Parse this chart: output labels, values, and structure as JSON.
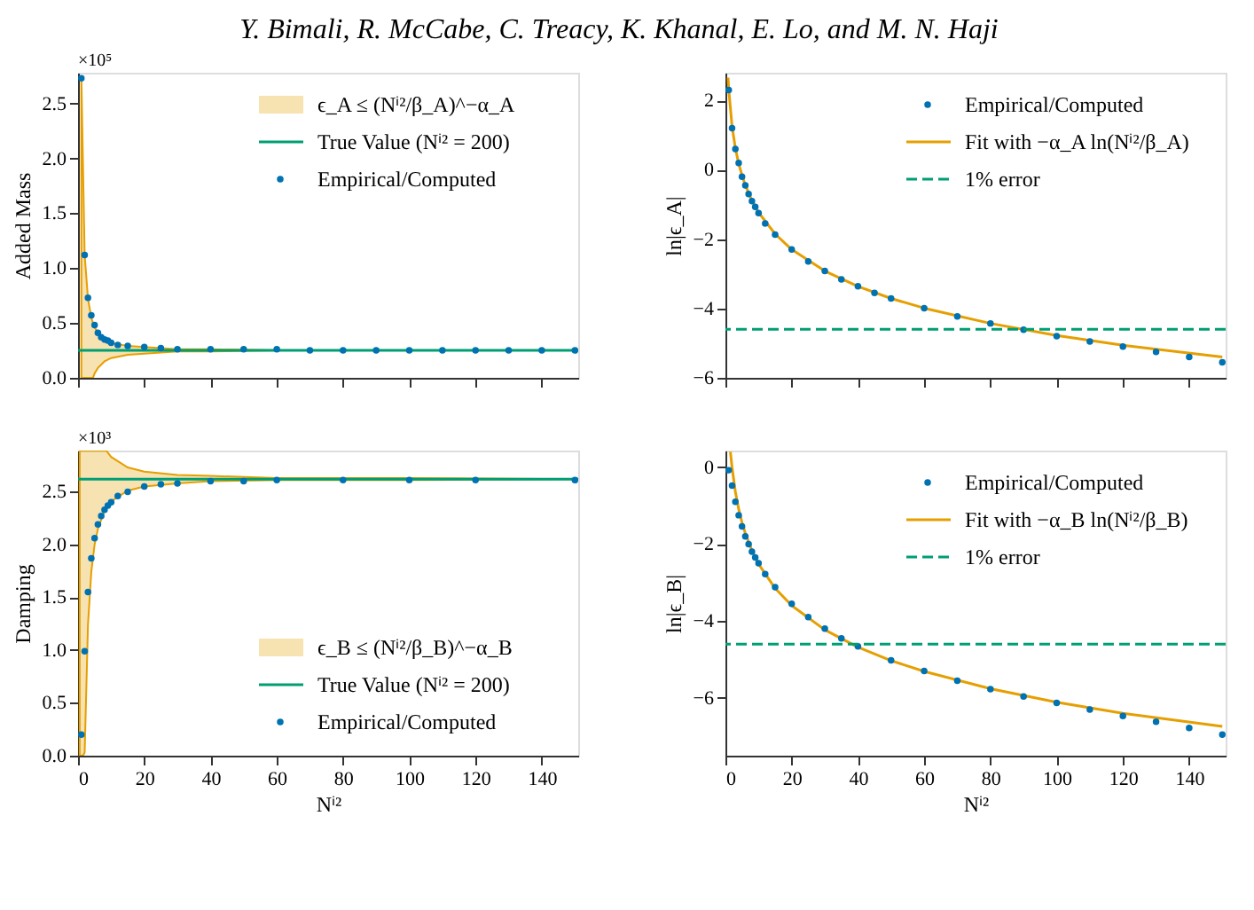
{
  "chart_data": [
    {
      "type": "scatter",
      "title": "Y. Bimali, R. McCabe, C. Treacy, K. Khanal, E. Lo, and M. N. Haji",
      "ylabel": "Added Mass",
      "annotations": [
        "×10⁵"
      ],
      "xlim": [
        0,
        151
      ],
      "xticks": [
        0,
        20,
        40,
        60,
        80,
        100,
        120,
        140
      ],
      "ylim": [
        0,
        2.78
      ],
      "yticks": [
        {
          "value": 0,
          "label": "0.0"
        },
        0.5,
        {
          "value": 1,
          "label": "1.0"
        },
        1.5,
        {
          "value": 2,
          "label": "2.0"
        },
        2.5
      ],
      "tick_labels": "y",
      "grid": false,
      "legend": "top right",
      "marker": "circle",
      "series": [
        {
          "name": "ϵ_A ≤ (Nⁱ²/β_A)^−α_A",
          "type": "area",
          "marker": "none",
          "color": "#e69f00",
          "x": [
            1,
            2,
            3,
            4,
            4.5,
            5,
            6,
            8,
            10,
            15,
            20,
            30,
            40,
            60,
            100,
            150
          ],
          "values": [
            null,
            null,
            null,
            null,
            null,
            null,
            null,
            null,
            null,
            null,
            null,
            null,
            null,
            null,
            null,
            null
          ],
          "upper": [
            2.75,
            1.12,
            0.72,
            0.55,
            0.5,
            0.46,
            0.41,
            0.35,
            0.32,
            0.29,
            0.28,
            0.26,
            0.26,
            0.25,
            0.25,
            0.25
          ],
          "lower": [
            0,
            0,
            0,
            0,
            0,
            0.04,
            0.09,
            0.15,
            0.18,
            0.21,
            0.22,
            0.24,
            0.24,
            0.25,
            0.25,
            0.25
          ]
        },
        {
          "name": "True Value (Nⁱ² = 200)",
          "type": "line",
          "marker": "none",
          "line_style": "solid",
          "color": "#009e73",
          "x": [
            0,
            151
          ],
          "values": [
            0.25,
            0.25
          ]
        },
        {
          "name": "Empirical/Computed",
          "color": "#0072b2",
          "x": [
            1,
            2,
            3,
            4,
            5,
            6,
            7,
            8,
            9,
            10,
            12,
            15,
            20,
            25,
            30,
            40,
            50,
            60,
            70,
            80,
            90,
            100,
            110,
            120,
            130,
            140,
            150
          ],
          "values": [
            2.73,
            1.12,
            0.73,
            0.57,
            0.48,
            0.41,
            0.37,
            0.35,
            0.34,
            0.32,
            0.3,
            0.29,
            0.28,
            0.27,
            0.26,
            0.26,
            0.26,
            0.26,
            0.25,
            0.25,
            0.25,
            0.25,
            0.25,
            0.25,
            0.25,
            0.25,
            0.25
          ]
        }
      ]
    },
    {
      "type": "scatter",
      "ylabel": "ln|ϵ_A|",
      "xlim": [
        0,
        151
      ],
      "xticks": [
        0,
        20,
        40,
        60,
        80,
        100,
        120,
        140
      ],
      "ylim": [
        -6,
        2.8
      ],
      "yticks": [
        -6,
        -4,
        -2,
        0,
        2
      ],
      "tick_labels": "y",
      "grid": false,
      "legend": "top right",
      "marker": "circle",
      "series": [
        {
          "name": "Empirical/Computed",
          "color": "#0072b2",
          "x": [
            1,
            2,
            3,
            4,
            5,
            6,
            7,
            8,
            9,
            10,
            12,
            15,
            20,
            25,
            30,
            35,
            40,
            45,
            50,
            60,
            70,
            80,
            90,
            100,
            110,
            120,
            130,
            140,
            150
          ],
          "values": [
            2.3,
            1.2,
            0.6,
            0.2,
            -0.2,
            -0.45,
            -0.7,
            -0.9,
            -1.07,
            -1.25,
            -1.55,
            -1.87,
            -2.3,
            -2.64,
            -2.92,
            -3.16,
            -3.36,
            -3.55,
            -3.71,
            -3.99,
            -4.23,
            -4.43,
            -4.61,
            -4.8,
            -4.95,
            -5.1,
            -5.25,
            -5.4,
            -5.55
          ]
        },
        {
          "name": "Fit with −α_A ln(Nⁱ²/β_A)",
          "type": "line",
          "marker": "none",
          "line_style": "solid",
          "color": "#e69f00",
          "x": [
            0.8,
            1,
            2,
            3,
            4,
            5,
            6,
            8,
            10,
            15,
            20,
            30,
            40,
            50,
            60,
            80,
            100,
            120,
            150
          ],
          "values": [
            2.66,
            2.32,
            1.25,
            0.62,
            0.18,
            -0.16,
            -0.44,
            -0.89,
            -1.23,
            -1.85,
            -2.3,
            -2.92,
            -3.36,
            -3.71,
            -3.99,
            -4.43,
            -4.78,
            -5.06,
            -5.4
          ]
        }
      ],
      "ref_lines": [
        {
          "axis": "y",
          "value": -4.6,
          "label": "1% error",
          "color": "#009e73",
          "line_style": "dashed"
        }
      ]
    },
    {
      "type": "scatter",
      "ylabel": "Damping",
      "xlabel": "Nⁱ²",
      "annotations": [
        "×10³"
      ],
      "xlim": [
        0,
        151
      ],
      "xticks": [
        0,
        20,
        40,
        60,
        80,
        100,
        120,
        140
      ],
      "ylim": [
        0,
        2.89
      ],
      "yticks": [
        {
          "value": 0,
          "label": "0.0"
        },
        0.5,
        {
          "value": 1,
          "label": "1.0"
        },
        1.5,
        {
          "value": 2,
          "label": "2.0"
        },
        2.5
      ],
      "grid": false,
      "legend": "bottom right",
      "marker": "circle",
      "series": [
        {
          "name": "ϵ_B ≤ (Nⁱ²/β_B)^−α_B",
          "type": "area",
          "marker": "none",
          "color": "#e69f00",
          "x": [
            0.5,
            1,
            1.5,
            2,
            3,
            4,
            5,
            6,
            8,
            8.5,
            10,
            15,
            20,
            30,
            40,
            60,
            100,
            150
          ],
          "values": [
            null,
            null,
            null,
            null,
            null,
            null,
            null,
            null,
            null,
            null,
            null,
            null,
            null,
            null,
            null,
            null,
            null,
            null
          ],
          "upper": [
            2.89,
            2.89,
            2.89,
            2.89,
            2.89,
            2.89,
            2.89,
            2.89,
            2.89,
            2.89,
            2.83,
            2.73,
            2.69,
            2.66,
            2.65,
            2.63,
            2.63,
            2.62
          ],
          "lower": [
            0,
            0,
            0,
            0.03,
            1.24,
            1.74,
            2.0,
            2.15,
            2.32,
            2.35,
            2.41,
            2.51,
            2.55,
            2.58,
            2.6,
            2.61,
            2.61,
            2.62
          ]
        },
        {
          "name": "True Value (Nⁱ² = 200)",
          "type": "line",
          "marker": "none",
          "line_style": "solid",
          "color": "#009e73",
          "x": [
            0,
            151
          ],
          "values": [
            2.62,
            2.62
          ]
        },
        {
          "name": "Empirical/Computed",
          "color": "#0072b2",
          "x": [
            1,
            2,
            3,
            4,
            5,
            6,
            7,
            8,
            9,
            10,
            12,
            15,
            20,
            25,
            30,
            40,
            50,
            60,
            80,
            100,
            120,
            150
          ],
          "values": [
            0.2,
            0.99,
            1.55,
            1.87,
            2.06,
            2.19,
            2.27,
            2.33,
            2.37,
            2.4,
            2.46,
            2.5,
            2.55,
            2.57,
            2.58,
            2.6,
            2.6,
            2.61,
            2.61,
            2.61,
            2.61,
            2.61
          ]
        }
      ]
    },
    {
      "type": "scatter",
      "ylabel": "ln|ϵ_B|",
      "xlabel": "Nⁱ²",
      "xlim": [
        0,
        151
      ],
      "xticks": [
        0,
        20,
        40,
        60,
        80,
        100,
        120,
        140
      ],
      "ylim": [
        -7.5,
        0.43
      ],
      "yticks": [
        -6,
        -4,
        -2,
        0
      ],
      "grid": false,
      "legend": "top right",
      "marker": "circle",
      "series": [
        {
          "name": "Empirical/Computed",
          "color": "#0072b2",
          "x": [
            1,
            2,
            3,
            4,
            5,
            6,
            7,
            8,
            9,
            10,
            12,
            15,
            20,
            25,
            30,
            35,
            40,
            50,
            60,
            70,
            80,
            90,
            100,
            110,
            120,
            130,
            140,
            150
          ],
          "values": [
            -0.08,
            -0.48,
            -0.9,
            -1.25,
            -1.54,
            -1.8,
            -2.0,
            -2.2,
            -2.35,
            -2.5,
            -2.78,
            -3.12,
            -3.55,
            -3.9,
            -4.2,
            -4.45,
            -4.66,
            -5.02,
            -5.3,
            -5.55,
            -5.77,
            -5.96,
            -6.13,
            -6.3,
            -6.47,
            -6.62,
            -6.78,
            -6.95
          ]
        },
        {
          "name": "Fit with −α_B ln(Nⁱ²/β_B)",
          "type": "line",
          "marker": "none",
          "line_style": "solid",
          "color": "#e69f00",
          "x": [
            1.5,
            2,
            3,
            4,
            5,
            6,
            8,
            10,
            15,
            20,
            30,
            40,
            50,
            60,
            80,
            100,
            120,
            150
          ],
          "values": [
            0.4,
            -0.01,
            -0.64,
            -1.09,
            -1.44,
            -1.72,
            -2.17,
            -2.52,
            -3.15,
            -3.6,
            -4.23,
            -4.68,
            -5.03,
            -5.31,
            -5.76,
            -6.11,
            -6.4,
            -6.74
          ]
        }
      ],
      "ref_lines": [
        {
          "axis": "y",
          "value": -4.6,
          "label": "1% error",
          "color": "#009e73",
          "line_style": "dashed"
        }
      ]
    }
  ]
}
